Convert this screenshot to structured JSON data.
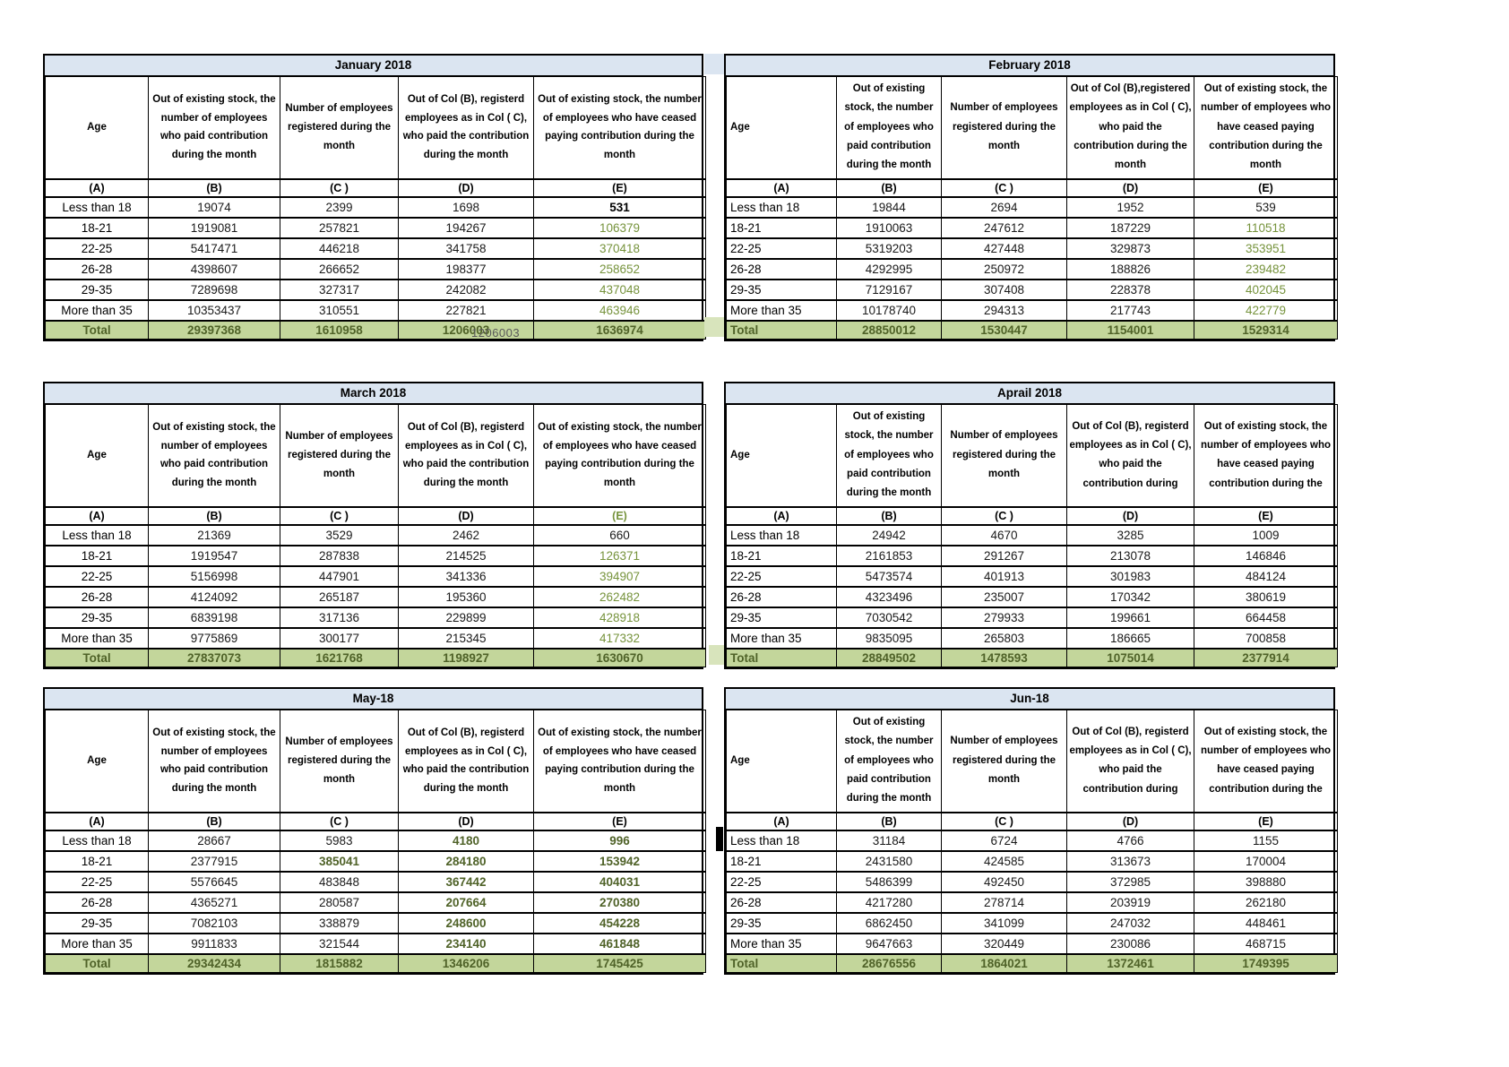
{
  "colors": {
    "title_bg": "#DBE5F1",
    "total_bg": "#C3D69B",
    "green_value": "#76933C",
    "dark_green_value": "#4F6228",
    "border": "#000000"
  },
  "age_labels": [
    "Less than 18",
    "18-21",
    "22-25",
    "26-28",
    "29-35",
    "More than 35"
  ],
  "col_labels": [
    "(A)",
    "(B)",
    "(C )",
    "(D)",
    "(E)"
  ],
  "artifacts": {
    "overlap_text": "1206003"
  },
  "months": [
    {
      "title": "January 2018",
      "style": "left",
      "headers": {
        "age": "Age",
        "b": "Out of existing stock, the number of employees who paid contribution during the month",
        "c": "Number of employees registered during the month",
        "d": "Out of Col (B), registerd employees as in Col ( C), who paid the contribution during the month",
        "e": "Out of existing stock, the number of  employees  who have ceased paying contribution during the month"
      },
      "label_e_green": false,
      "rows": [
        {
          "values": [
            "19074",
            "2399",
            "1698",
            "531"
          ],
          "styles": [
            "k",
            "k",
            "k",
            "B"
          ]
        },
        {
          "values": [
            "1919081",
            "257821",
            "194267",
            "106379"
          ],
          "styles": [
            "k",
            "k",
            "k",
            "g"
          ]
        },
        {
          "values": [
            "5417471",
            "446218",
            "341758",
            "370418"
          ],
          "styles": [
            "k",
            "k",
            "k",
            "g"
          ]
        },
        {
          "values": [
            "4398607",
            "266652",
            "198377",
            "258652"
          ],
          "styles": [
            "k",
            "k",
            "k",
            "g"
          ]
        },
        {
          "values": [
            "7289698",
            "327317",
            "242082",
            "437048"
          ],
          "styles": [
            "k",
            "k",
            "k",
            "g"
          ]
        },
        {
          "values": [
            "10353437",
            "310551",
            "227821",
            "463946"
          ],
          "styles": [
            "k",
            "k",
            "k",
            "g"
          ]
        }
      ],
      "total": {
        "label": "Total",
        "values": [
          "29397368",
          "1610958",
          "1206003",
          "1636974"
        ]
      }
    },
    {
      "title": "February 2018",
      "style": "right",
      "headers": {
        "age": "Age",
        "b": "Out of existing stock, the number of employees who paid contribution during the month",
        "c": "Number of employees registered during the month",
        "d": "Out of Col (B),registered employees as in Col ( C), who paid the contribution during the month",
        "e": "Out of existing stock, the number of employees  who have ceased paying contribution during the month"
      },
      "label_e_green": false,
      "rows": [
        {
          "values": [
            "19844",
            "2694",
            "1952",
            "539"
          ],
          "styles": [
            "k",
            "k",
            "k",
            "k"
          ]
        },
        {
          "values": [
            "1910063",
            "247612",
            "187229",
            "110518"
          ],
          "styles": [
            "k",
            "k",
            "k",
            "g"
          ]
        },
        {
          "values": [
            "5319203",
            "427448",
            "329873",
            "353951"
          ],
          "styles": [
            "k",
            "k",
            "k",
            "g"
          ]
        },
        {
          "values": [
            "4292995",
            "250972",
            "188826",
            "239482"
          ],
          "styles": [
            "k",
            "k",
            "k",
            "g"
          ]
        },
        {
          "values": [
            "7129167",
            "307408",
            "228378",
            "402045"
          ],
          "styles": [
            "k",
            "k",
            "k",
            "g"
          ]
        },
        {
          "values": [
            "10178740",
            "294313",
            "217743",
            "422779"
          ],
          "styles": [
            "k",
            "k",
            "k",
            "g"
          ]
        }
      ],
      "total": {
        "label": "Total",
        "values": [
          "28850012",
          "1530447",
          "1154001",
          "1529314"
        ]
      }
    },
    {
      "title": "March 2018",
      "style": "left",
      "headers": {
        "age": "Age",
        "b": "Out of existing stock, the number of employees who paid contribution during the month",
        "c": "Number of employees registered during the month",
        "d": "Out of Col (B), registerd employees as in Col ( C), who paid the contribution during the month",
        "e": "Out of existing stock, the number of  employees  who have ceased paying contribution during the month"
      },
      "label_e_green": true,
      "rows": [
        {
          "values": [
            "21369",
            "3529",
            "2462",
            "660"
          ],
          "styles": [
            "k",
            "k",
            "k",
            "k"
          ]
        },
        {
          "values": [
            "1919547",
            "287838",
            "214525",
            "126371"
          ],
          "styles": [
            "k",
            "k",
            "k",
            "g"
          ]
        },
        {
          "values": [
            "5156998",
            "447901",
            "341336",
            "394907"
          ],
          "styles": [
            "k",
            "k",
            "k",
            "g"
          ]
        },
        {
          "values": [
            "4124092",
            "265187",
            "195360",
            "262482"
          ],
          "styles": [
            "k",
            "k",
            "k",
            "g"
          ]
        },
        {
          "values": [
            "6839198",
            "317136",
            "229899",
            "428918"
          ],
          "styles": [
            "k",
            "k",
            "k",
            "g"
          ]
        },
        {
          "values": [
            "9775869",
            "300177",
            "215345",
            "417332"
          ],
          "styles": [
            "k",
            "k",
            "k",
            "g"
          ]
        }
      ],
      "total": {
        "label": "Total",
        "values": [
          "27837073",
          "1621768",
          "1198927",
          "1630670"
        ]
      }
    },
    {
      "title": "Aprail 2018",
      "style": "right",
      "headers": {
        "age": "Age",
        "b": "Out of existing stock, the number of employees who paid contribution during the month",
        "c": "Number of employees registered during the month",
        "d": "Out of Col (B), registerd employees as in Col ( C), who paid the contribution during",
        "e": "Out of existing stock, the number of employees  who have ceased paying contribution during the"
      },
      "label_e_green": false,
      "rows": [
        {
          "values": [
            "24942",
            "4670",
            "3285",
            "1009"
          ],
          "styles": [
            "k",
            "k",
            "k",
            "k"
          ]
        },
        {
          "values": [
            "2161853",
            "291267",
            "213078",
            "146846"
          ],
          "styles": [
            "k",
            "k",
            "k",
            "k"
          ]
        },
        {
          "values": [
            "5473574",
            "401913",
            "301983",
            "484124"
          ],
          "styles": [
            "k",
            "k",
            "k",
            "k"
          ]
        },
        {
          "values": [
            "4323496",
            "235007",
            "170342",
            "380619"
          ],
          "styles": [
            "k",
            "k",
            "k",
            "k"
          ]
        },
        {
          "values": [
            "7030542",
            "279933",
            "199661",
            "664458"
          ],
          "styles": [
            "k",
            "k",
            "k",
            "k"
          ]
        },
        {
          "values": [
            "9835095",
            "265803",
            "186665",
            "700858"
          ],
          "styles": [
            "k",
            "k",
            "k",
            "k"
          ]
        }
      ],
      "total": {
        "label": "Total",
        "values": [
          "28849502",
          "1478593",
          "1075014",
          "2377914"
        ]
      }
    },
    {
      "title": "May-18",
      "style": "left",
      "headers": {
        "age": "Age",
        "b": "Out of existing stock, the number of employees who paid contribution during the month",
        "c": "Number of employees registered during the month",
        "d": "Out of Col (B), registerd employees as in Col ( C), who paid the contribution during the month",
        "e": "Out of existing stock, the number of  employees  who have ceased paying contribution during the month"
      },
      "label_e_green": false,
      "rows": [
        {
          "values": [
            "28667",
            "5983",
            "4180",
            "996"
          ],
          "styles": [
            "k",
            "k",
            "G",
            "G"
          ]
        },
        {
          "values": [
            "2377915",
            "385041",
            "284180",
            "153942"
          ],
          "styles": [
            "k",
            "G",
            "G",
            "G"
          ]
        },
        {
          "values": [
            "5576645",
            "483848",
            "367442",
            "404031"
          ],
          "styles": [
            "k",
            "k",
            "G",
            "G"
          ]
        },
        {
          "values": [
            "4365271",
            "280587",
            "207664",
            "270380"
          ],
          "styles": [
            "k",
            "k",
            "G",
            "G"
          ]
        },
        {
          "values": [
            "7082103",
            "338879",
            "248600",
            "454228"
          ],
          "styles": [
            "k",
            "k",
            "G",
            "G"
          ]
        },
        {
          "values": [
            "9911833",
            "321544",
            "234140",
            "461848"
          ],
          "styles": [
            "k",
            "k",
            "G",
            "G"
          ]
        }
      ],
      "total": {
        "label": "Total",
        "values": [
          "29342434",
          "1815882",
          "1346206",
          "1745425"
        ]
      }
    },
    {
      "title": "Jun-18",
      "style": "right",
      "headers": {
        "age": "Age",
        "b": "Out of existing stock, the number of employees who paid contribution during the month",
        "c": "Number of employees registered during the month",
        "d": "Out of Col (B), registerd employees as in Col ( C), who paid the contribution during",
        "e": "Out of existing stock, the number of employees  who have ceased paying contribution during the"
      },
      "label_e_green": false,
      "rows": [
        {
          "values": [
            "31184",
            "6724",
            "4766",
            "1155"
          ],
          "styles": [
            "k",
            "k",
            "k",
            "k"
          ]
        },
        {
          "values": [
            "2431580",
            "424585",
            "313673",
            "170004"
          ],
          "styles": [
            "k",
            "k",
            "k",
            "k"
          ]
        },
        {
          "values": [
            "5486399",
            "492450",
            "372985",
            "398880"
          ],
          "styles": [
            "k",
            "k",
            "k",
            "k"
          ]
        },
        {
          "values": [
            "4217280",
            "278714",
            "203919",
            "262180"
          ],
          "styles": [
            "k",
            "k",
            "k",
            "k"
          ]
        },
        {
          "values": [
            "6862450",
            "341099",
            "247032",
            "448461"
          ],
          "styles": [
            "k",
            "k",
            "k",
            "k"
          ]
        },
        {
          "values": [
            "9647663",
            "320449",
            "230086",
            "468715"
          ],
          "styles": [
            "k",
            "k",
            "k",
            "k"
          ]
        }
      ],
      "total": {
        "label": "Total",
        "values": [
          "28676556",
          "1864021",
          "1372461",
          "1749395"
        ]
      }
    }
  ]
}
